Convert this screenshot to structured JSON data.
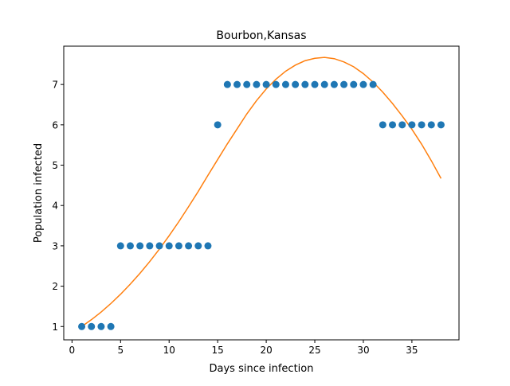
{
  "chart_data": {
    "type": "scatter",
    "title": "Bourbon,Kansas",
    "xlabel": "Days since infection",
    "ylabel": "Population infected",
    "xlim": [
      -0.85,
      39.85
    ],
    "ylim": [
      0.67,
      7.95
    ],
    "xticks": [
      0,
      5,
      10,
      15,
      20,
      25,
      30,
      35
    ],
    "yticks": [
      1,
      2,
      3,
      4,
      5,
      6,
      7
    ],
    "grid": false,
    "legend": "none",
    "series": [
      {
        "kind": "scatter",
        "color": "#1f77b4",
        "x": [
          1,
          2,
          3,
          4,
          5,
          6,
          7,
          8,
          9,
          10,
          11,
          12,
          13,
          14,
          15,
          16,
          17,
          18,
          19,
          20,
          21,
          22,
          23,
          24,
          25,
          26,
          27,
          28,
          29,
          30,
          31,
          32,
          33,
          34,
          35,
          36,
          37,
          38
        ],
        "y": [
          1,
          1,
          1,
          1,
          3,
          3,
          3,
          3,
          3,
          3,
          3,
          3,
          3,
          3,
          6,
          7,
          7,
          7,
          7,
          7,
          7,
          7,
          7,
          7,
          7,
          7,
          7,
          7,
          7,
          7,
          7,
          6,
          6,
          6,
          6,
          6,
          6,
          6
        ]
      },
      {
        "kind": "line",
        "color": "#ff7f0e",
        "x": [
          1,
          2,
          3,
          4,
          5,
          6,
          7,
          8,
          9,
          10,
          11,
          12,
          13,
          14,
          15,
          16,
          17,
          18,
          19,
          20,
          21,
          22,
          23,
          24,
          25,
          26,
          27,
          28,
          29,
          30,
          31,
          32,
          33,
          34,
          35,
          36,
          37,
          38
        ],
        "y": [
          1.0,
          1.17,
          1.36,
          1.57,
          1.8,
          2.05,
          2.32,
          2.61,
          2.92,
          3.25,
          3.6,
          3.97,
          4.35,
          4.75,
          5.14,
          5.53,
          5.9,
          6.27,
          6.6,
          6.89,
          7.13,
          7.33,
          7.48,
          7.59,
          7.65,
          7.67,
          7.64,
          7.56,
          7.44,
          7.27,
          7.06,
          6.81,
          6.53,
          6.22,
          5.89,
          5.52,
          5.11,
          4.67
        ]
      }
    ]
  }
}
